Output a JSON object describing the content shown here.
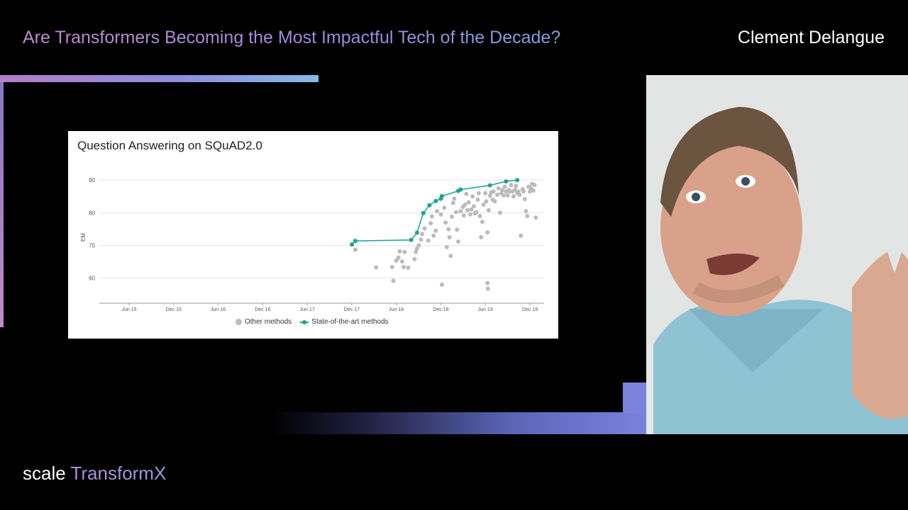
{
  "header": {
    "title": "Are Transformers Becoming the Most Impactful Tech of the Decade?",
    "speaker": "Clement Delangue"
  },
  "logo": {
    "part1": "scale",
    "part2": "TransformX"
  },
  "colors": {
    "sota": "#1aa394",
    "other": "#bbbbbb",
    "accent": "#7a82dc"
  },
  "chart_data": {
    "type": "scatter",
    "title": "Question Answering on SQuAD2.0",
    "ylabel": "EM",
    "xlabel": "",
    "xticks": [
      "Jun 15",
      "Dec 15",
      "Jun 16",
      "Dec 16",
      "Jun 17",
      "Dec 17",
      "Jun 18",
      "Dec 18",
      "Jun 19",
      "Dec 19"
    ],
    "yticks": [
      60,
      70,
      80,
      90
    ],
    "ylim": [
      53,
      92
    ],
    "grid": true,
    "legend_position": "bottom-center",
    "series": [
      {
        "name": "Other methods",
        "marker": "dot",
        "points": [
          [
            "2017-12-15",
            68.7
          ],
          [
            "2018-03-10",
            63.3
          ],
          [
            "2018-05-15",
            63.4
          ],
          [
            "2018-05-20",
            59.2
          ],
          [
            "2018-06-01",
            65.4
          ],
          [
            "2018-06-10",
            66.3
          ],
          [
            "2018-06-15",
            68.2
          ],
          [
            "2018-06-25",
            65.1
          ],
          [
            "2018-07-01",
            63.4
          ],
          [
            "2018-07-05",
            68.0
          ],
          [
            "2018-07-20",
            63.2
          ],
          [
            "2018-08-15",
            65.8
          ],
          [
            "2018-08-20",
            68.0
          ],
          [
            "2018-08-25",
            69.1
          ],
          [
            "2018-09-01",
            70.0
          ],
          [
            "2018-09-10",
            71.8
          ],
          [
            "2018-09-15",
            73.5
          ],
          [
            "2018-09-25",
            75.2
          ],
          [
            "2018-10-10",
            71.5
          ],
          [
            "2018-10-20",
            76.8
          ],
          [
            "2018-10-25",
            78.9
          ],
          [
            "2018-11-01",
            73.0
          ],
          [
            "2018-11-10",
            74.5
          ],
          [
            "2018-11-15",
            80.5
          ],
          [
            "2018-12-01",
            79.5
          ],
          [
            "2018-12-05",
            58.0
          ],
          [
            "2018-12-15",
            81.5
          ],
          [
            "2018-12-20",
            77.0
          ],
          [
            "2018-12-25",
            69.5
          ],
          [
            "2019-01-01",
            75.0
          ],
          [
            "2019-01-05",
            72.5
          ],
          [
            "2019-01-10",
            66.8
          ],
          [
            "2019-01-15",
            78.8
          ],
          [
            "2019-01-20",
            83.0
          ],
          [
            "2019-01-25",
            84.3
          ],
          [
            "2019-02-01",
            80.2
          ],
          [
            "2019-02-05",
            74.8
          ],
          [
            "2019-02-10",
            71.2
          ],
          [
            "2019-02-20",
            80.5
          ],
          [
            "2019-03-01",
            81.8
          ],
          [
            "2019-03-05",
            79.2
          ],
          [
            "2019-03-10",
            82.5
          ],
          [
            "2019-03-15",
            85.8
          ],
          [
            "2019-03-20",
            80.8
          ],
          [
            "2019-03-25",
            83.2
          ],
          [
            "2019-04-01",
            79.5
          ],
          [
            "2019-04-05",
            81.0
          ],
          [
            "2019-04-10",
            85.0
          ],
          [
            "2019-04-15",
            82.0
          ],
          [
            "2019-04-20",
            79.8
          ],
          [
            "2019-04-25",
            80.2
          ],
          [
            "2019-05-01",
            84.0
          ],
          [
            "2019-05-05",
            86.0
          ],
          [
            "2019-05-10",
            79.0
          ],
          [
            "2019-05-15",
            72.5
          ],
          [
            "2019-05-20",
            77.2
          ],
          [
            "2019-05-25",
            82.5
          ],
          [
            "2019-06-01",
            86.0
          ],
          [
            "2019-06-05",
            83.5
          ],
          [
            "2019-06-10",
            74.0
          ],
          [
            "2019-06-10",
            58.5
          ],
          [
            "2019-06-12",
            56.8
          ],
          [
            "2019-06-15",
            80.8
          ],
          [
            "2019-06-20",
            85.2
          ],
          [
            "2019-06-25",
            86.2
          ],
          [
            "2019-07-01",
            84.0
          ],
          [
            "2019-07-05",
            86.5
          ],
          [
            "2019-07-10",
            83.5
          ],
          [
            "2019-07-20",
            85.5
          ],
          [
            "2019-07-25",
            87.5
          ],
          [
            "2019-08-01",
            80.0
          ],
          [
            "2019-08-05",
            86.0
          ],
          [
            "2019-08-10",
            87.0
          ],
          [
            "2019-08-15",
            85.3
          ],
          [
            "2019-08-20",
            88.0
          ],
          [
            "2019-08-25",
            86.5
          ],
          [
            "2019-09-01",
            85.3
          ],
          [
            "2019-09-05",
            87.0
          ],
          [
            "2019-09-10",
            86.5
          ],
          [
            "2019-09-15",
            88.5
          ],
          [
            "2019-09-20",
            86.5
          ],
          [
            "2019-09-25",
            85.0
          ],
          [
            "2019-10-01",
            87.0
          ],
          [
            "2019-10-05",
            88.2
          ],
          [
            "2019-10-10",
            86.0
          ],
          [
            "2019-10-15",
            86.5
          ],
          [
            "2019-10-20",
            85.5
          ],
          [
            "2019-10-25",
            73.0
          ],
          [
            "2019-11-01",
            87.2
          ],
          [
            "2019-11-05",
            86.5
          ],
          [
            "2019-11-10",
            84.2
          ],
          [
            "2019-11-15",
            80.5
          ],
          [
            "2019-11-20",
            79.0
          ],
          [
            "2019-11-25",
            88.0
          ],
          [
            "2019-12-01",
            86.5
          ],
          [
            "2019-12-05",
            87.5
          ],
          [
            "2019-12-10",
            88.8
          ],
          [
            "2019-12-15",
            86.8
          ],
          [
            "2019-12-20",
            88.5
          ],
          [
            "2019-12-25",
            78.5
          ]
        ]
      },
      {
        "name": "State-of-the-art methods",
        "marker": "line",
        "points": [
          [
            "2017-12-01",
            70.3
          ],
          [
            "2017-12-15",
            71.4
          ],
          [
            "2018-08-01",
            71.7
          ],
          [
            "2018-08-25",
            73.9
          ],
          [
            "2018-09-20",
            79.9
          ],
          [
            "2018-10-15",
            82.3
          ],
          [
            "2018-11-10",
            83.6
          ],
          [
            "2018-12-01",
            84.3
          ],
          [
            "2018-12-05",
            85.1
          ],
          [
            "2019-02-10",
            86.7
          ],
          [
            "2019-02-20",
            87.1
          ],
          [
            "2019-06-20",
            88.4
          ],
          [
            "2019-08-25",
            89.6
          ],
          [
            "2019-10-10",
            90.0
          ]
        ]
      }
    ]
  }
}
